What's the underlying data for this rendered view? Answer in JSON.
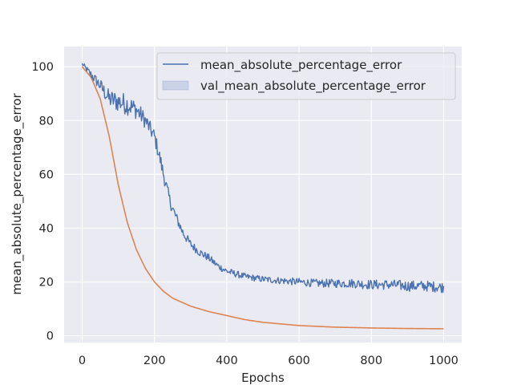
{
  "chart_data": {
    "type": "line",
    "title": "",
    "xlabel": "Epochs",
    "ylabel": "mean_absolute_percentage_error",
    "xlim": [
      -50,
      1050
    ],
    "ylim": [
      -2.5,
      107.5
    ],
    "xticks": [
      0,
      200,
      400,
      600,
      800,
      1000
    ],
    "yticks": [
      0,
      20,
      40,
      60,
      80,
      100
    ],
    "grid": true,
    "legend_position": "top-right",
    "series": [
      {
        "name": "mean_absolute_percentage_error",
        "color": "#4c72b0",
        "x": [
          0,
          25,
          50,
          75,
          100,
          125,
          150,
          175,
          200,
          215,
          230,
          245,
          260,
          280,
          300,
          325,
          350,
          375,
          400,
          450,
          500,
          550,
          600,
          650,
          700,
          750,
          800,
          850,
          900,
          950,
          1000
        ],
        "y": [
          101,
          97,
          93,
          88,
          87,
          86,
          84,
          80,
          74,
          66,
          57,
          49,
          44,
          38,
          34,
          31,
          29,
          26,
          24,
          22,
          21,
          20.5,
          20,
          19.5,
          19.5,
          19.5,
          19,
          19,
          18.5,
          18.5,
          18
        ],
        "noise": [
          0.8,
          1.5,
          2.5,
          3.5,
          4,
          4,
          3.5,
          3,
          2.8,
          2.8,
          2.5,
          2.2,
          2,
          1.8,
          1.6,
          1.5,
          1.4,
          1.3,
          1.3,
          1.2,
          1.2,
          1.3,
          1.4,
          1.5,
          1.6,
          1.7,
          1.8,
          1.9,
          2,
          2,
          2
        ]
      },
      {
        "name": "val_mean_absolute_percentage_error",
        "color": "#dd8452",
        "x": [
          0,
          25,
          50,
          75,
          100,
          125,
          150,
          175,
          200,
          225,
          250,
          300,
          350,
          400,
          450,
          500,
          600,
          700,
          800,
          900,
          1000
        ],
        "y": [
          100,
          96,
          88,
          74,
          56,
          42,
          32,
          25,
          20,
          16.5,
          14,
          11,
          9,
          7.5,
          6,
          5,
          3.8,
          3.2,
          2.9,
          2.7,
          2.6
        ]
      }
    ]
  }
}
